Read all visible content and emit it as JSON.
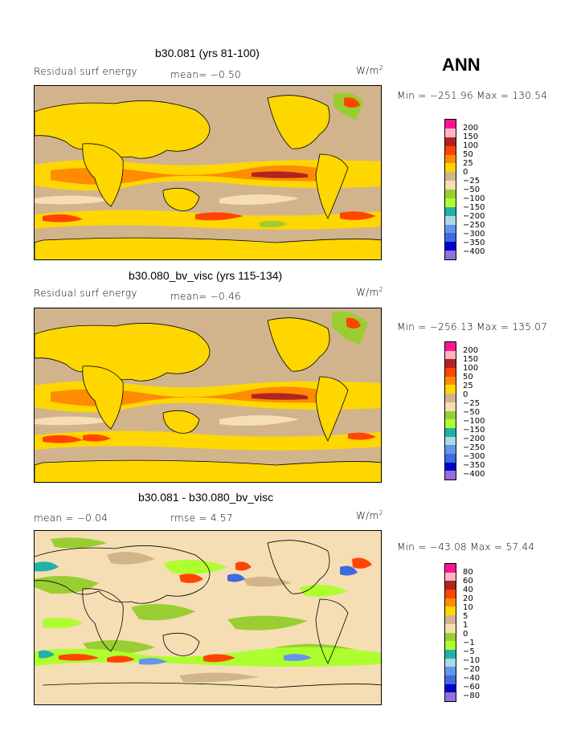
{
  "season": "ANN",
  "units_label": "W/m",
  "units_sup": "2",
  "panels": [
    {
      "title": "b30.081 (yrs 81-100)",
      "left_label": "Residual surf energy",
      "center_label": "mean=  −0.50",
      "minmax": "Min = −251.96 Max = 130.54",
      "levels": [
        "200",
        "150",
        "100",
        "50",
        "25",
        "0",
        "−25",
        "−50",
        "−100",
        "−150",
        "−200",
        "−250",
        "−300",
        "−350",
        "−400"
      ],
      "colors": [
        "#ff1493",
        "#ffb6c1",
        "#b22222",
        "#ff4500",
        "#ff8c00",
        "#ffd700",
        "#d2b48c",
        "#f5deb3",
        "#9acd32",
        "#adff2f",
        "#20b2aa",
        "#add8e6",
        "#6495ed",
        "#4169e1",
        "#0000cd",
        "#9370db"
      ]
    },
    {
      "title": "b30.080_bv_visc (yrs 115-134)",
      "left_label": "Residual surf energy",
      "center_label": "mean=  −0.46",
      "minmax": "Min = −256.13 Max = 135.07",
      "levels": [
        "200",
        "150",
        "100",
        "50",
        "25",
        "0",
        "−25",
        "−50",
        "−100",
        "−150",
        "−200",
        "−250",
        "−300",
        "−350",
        "−400"
      ],
      "colors": [
        "#ff1493",
        "#ffb6c1",
        "#b22222",
        "#ff4500",
        "#ff8c00",
        "#ffd700",
        "#d2b48c",
        "#f5deb3",
        "#9acd32",
        "#adff2f",
        "#20b2aa",
        "#add8e6",
        "#6495ed",
        "#4169e1",
        "#0000cd",
        "#9370db"
      ]
    },
    {
      "title": "b30.081 - b30.080_bv_visc",
      "left_label": "mean =  −0.04",
      "center_label": "rmse =   4.57",
      "minmax": "Min = −43.08 Max =  57.44",
      "levels": [
        "80",
        "60",
        "40",
        "20",
        "10",
        "5",
        "1",
        "0",
        "−1",
        "−5",
        "−10",
        "−20",
        "−40",
        "−60",
        "−80"
      ],
      "colors": [
        "#ff1493",
        "#ffb6c1",
        "#b22222",
        "#ff4500",
        "#ff8c00",
        "#ffd700",
        "#d2b48c",
        "#f5deb3",
        "#9acd32",
        "#adff2f",
        "#20b2aa",
        "#add8e6",
        "#6495ed",
        "#4169e1",
        "#0000cd",
        "#9370db"
      ]
    }
  ]
}
